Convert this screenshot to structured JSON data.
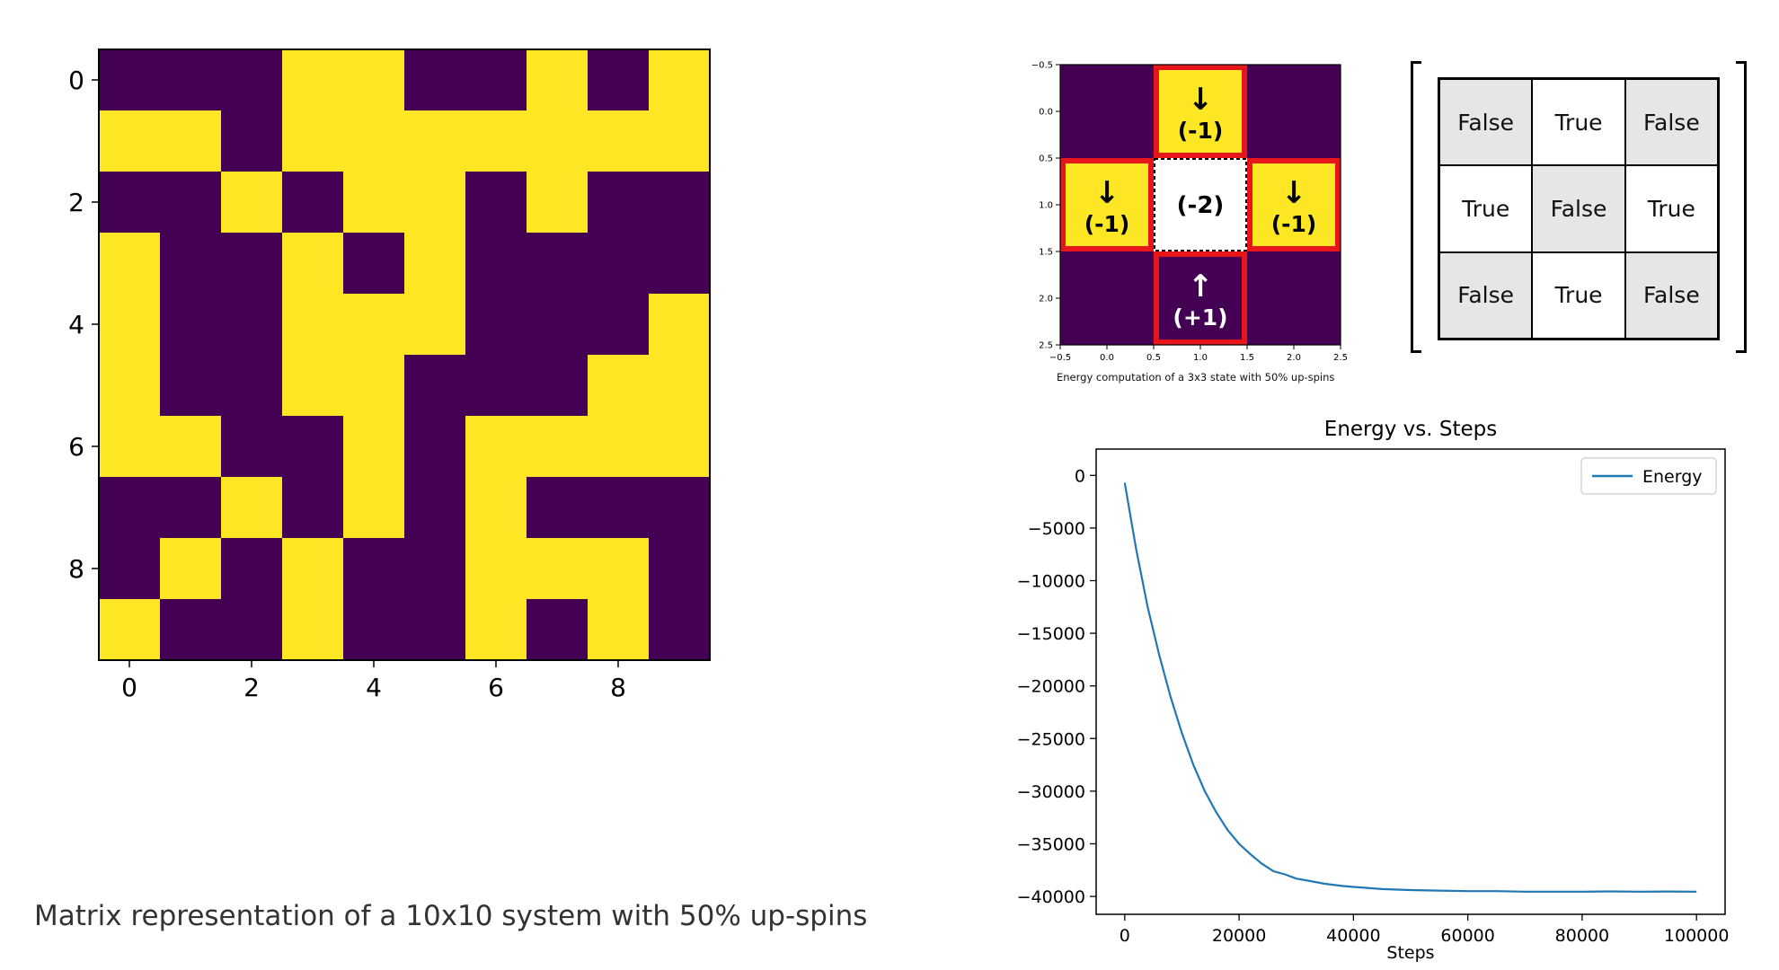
{
  "spin_matrix_panel": {
    "caption": "Matrix representation of a 10x10 system with 50% up-spins",
    "colors": {
      "up": "#fde725",
      "down": "#440154"
    },
    "x_ticks": [
      "0",
      "2",
      "4",
      "6",
      "8"
    ],
    "y_ticks": [
      "0",
      "2",
      "4",
      "6",
      "8"
    ],
    "grid": [
      [
        0,
        0,
        0,
        1,
        1,
        0,
        0,
        1,
        0,
        1
      ],
      [
        1,
        1,
        0,
        1,
        1,
        1,
        1,
        1,
        1,
        1
      ],
      [
        0,
        0,
        1,
        0,
        1,
        1,
        0,
        1,
        0,
        0
      ],
      [
        1,
        0,
        0,
        1,
        0,
        1,
        0,
        0,
        0,
        0
      ],
      [
        1,
        0,
        0,
        1,
        1,
        1,
        0,
        0,
        0,
        1
      ],
      [
        1,
        0,
        0,
        1,
        1,
        0,
        0,
        0,
        1,
        1
      ],
      [
        1,
        1,
        0,
        0,
        1,
        0,
        1,
        1,
        1,
        1
      ],
      [
        0,
        0,
        1,
        0,
        1,
        0,
        1,
        0,
        0,
        0
      ],
      [
        0,
        1,
        0,
        1,
        0,
        0,
        1,
        1,
        1,
        0
      ],
      [
        1,
        0,
        0,
        1,
        0,
        0,
        1,
        0,
        1,
        0
      ]
    ]
  },
  "energy_example_panel": {
    "caption": "Energy computation of a 3x3 state with 50% up-spins",
    "x_ticks": [
      "−0.5",
      "0.0",
      "0.5",
      "1.0",
      "1.5",
      "2.0",
      "2.5"
    ],
    "y_ticks": [
      "−0.5",
      "0.0",
      "0.5",
      "1.0",
      "1.5",
      "2.0",
      "2.5"
    ],
    "grid": [
      [
        0,
        1,
        0
      ],
      [
        1,
        null,
        1
      ],
      [
        0,
        0,
        0
      ]
    ],
    "highlight_color": "#e8161b",
    "annotations": [
      {
        "cell": [
          0,
          1
        ],
        "arrow": "↓",
        "value": "(-1)",
        "dark_text": true
      },
      {
        "cell": [
          1,
          0
        ],
        "arrow": "↓",
        "value": "(-1)",
        "dark_text": true
      },
      {
        "cell": [
          1,
          1
        ],
        "arrow": "",
        "value": "(-2)",
        "dark_text": true
      },
      {
        "cell": [
          1,
          2
        ],
        "arrow": "↓",
        "value": "(-1)",
        "dark_text": true
      },
      {
        "cell": [
          2,
          1
        ],
        "arrow": "↑",
        "value": "(+1)",
        "dark_text": false
      }
    ]
  },
  "boolean_matrix": {
    "cells": [
      {
        "label": "False",
        "shaded": true
      },
      {
        "label": "True",
        "shaded": false
      },
      {
        "label": "False",
        "shaded": true
      },
      {
        "label": "True",
        "shaded": false
      },
      {
        "label": "False",
        "shaded": true
      },
      {
        "label": "True",
        "shaded": false
      },
      {
        "label": "False",
        "shaded": true
      },
      {
        "label": "True",
        "shaded": false
      },
      {
        "label": "False",
        "shaded": true
      }
    ]
  },
  "chart_data": {
    "type": "line",
    "title": "Energy vs. Steps",
    "xlabel": "Steps",
    "ylabel": "",
    "xlim": [
      -5000,
      105000
    ],
    "ylim": [
      -41700,
      2500
    ],
    "x_ticks": [
      0,
      20000,
      40000,
      60000,
      80000,
      100000
    ],
    "y_ticks": [
      0,
      -5000,
      -10000,
      -15000,
      -20000,
      -25000,
      -30000,
      -35000,
      -40000
    ],
    "legend_position": "top-right",
    "grid": false,
    "series": [
      {
        "name": "Energy",
        "color": "#1f77b4",
        "x": [
          0,
          2000,
          4000,
          6000,
          8000,
          10000,
          12000,
          14000,
          16000,
          18000,
          20000,
          22000,
          24000,
          26000,
          28000,
          30000,
          32000,
          35000,
          38000,
          40000,
          45000,
          50000,
          55000,
          60000,
          65000,
          70000,
          75000,
          80000,
          85000,
          90000,
          95000,
          100000
        ],
        "y": [
          -700,
          -7000,
          -12500,
          -17000,
          -21000,
          -24500,
          -27500,
          -30000,
          -32000,
          -33700,
          -35000,
          -36000,
          -36900,
          -37600,
          -37900,
          -38300,
          -38500,
          -38800,
          -39000,
          -39100,
          -39300,
          -39400,
          -39450,
          -39500,
          -39500,
          -39550,
          -39550,
          -39550,
          -39520,
          -39550,
          -39530,
          -39550
        ]
      }
    ]
  }
}
